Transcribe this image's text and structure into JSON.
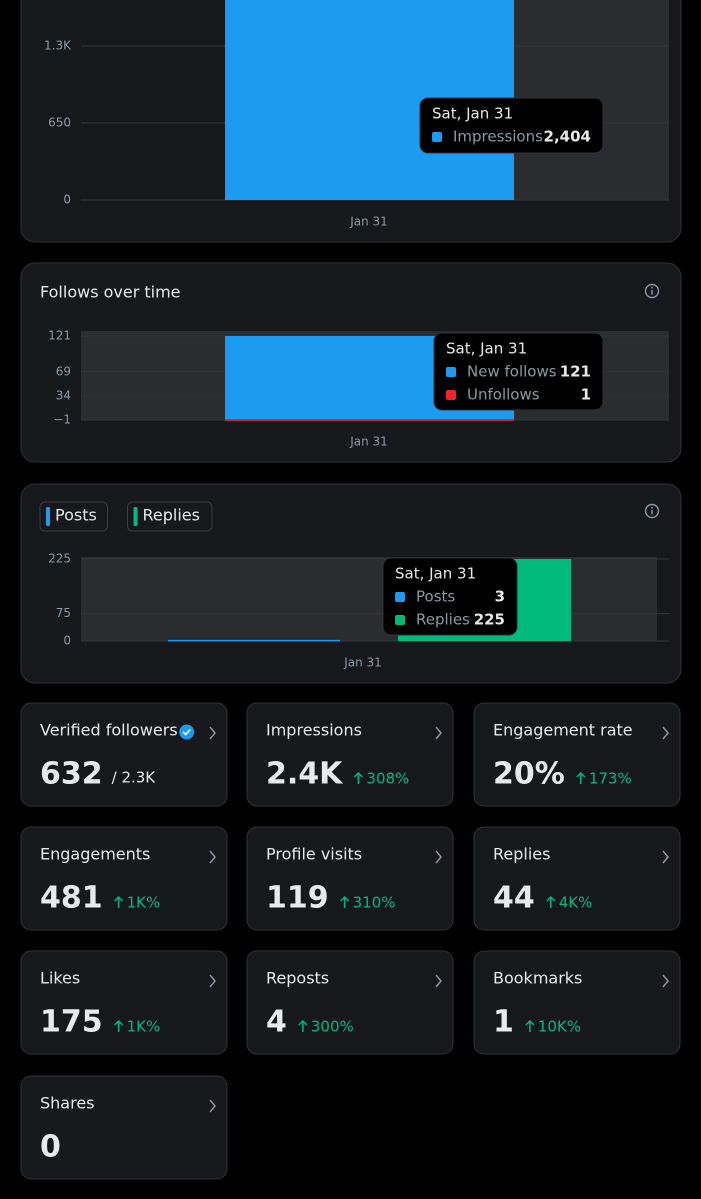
{
  "charts": [
    {
      "type": "bar",
      "x_labels": [
        "Jan 31"
      ],
      "tooltip_title": "Sat, Jan 31",
      "ylim": [
        0,
        1688
      ],
      "yticks": [
        {
          "value": 1300,
          "label": "1.3K"
        },
        650,
        0
      ],
      "series": [
        {
          "name": "Impressions",
          "color": "#1d9bf0",
          "values": [
            2404
          ],
          "value_labels": [
            "2,404"
          ]
        }
      ]
    },
    {
      "type": "bar",
      "title": "Follows over time",
      "x_labels": [
        "Jan 31"
      ],
      "tooltip_title": "Sat, Jan 31",
      "ylim": [
        -1,
        121
      ],
      "yticks": [
        121,
        69,
        34,
        {
          "value": -1,
          "label": "−1"
        }
      ],
      "series": [
        {
          "name": "New follows",
          "color": "#1d9bf0",
          "values": [
            121
          ]
        },
        {
          "name": "Unfollows",
          "color": "#f4212e",
          "values": [
            1
          ]
        }
      ]
    },
    {
      "type": "bar",
      "legend": true,
      "x_labels": [
        "Jan 31"
      ],
      "tooltip_title": "Sat, Jan 31",
      "ylim": [
        0,
        225
      ],
      "yticks": [
        225,
        75,
        0
      ],
      "series": [
        {
          "name": "Posts",
          "color": "#1d9bf0",
          "values": [
            3
          ]
        },
        {
          "name": "Replies",
          "color": "#00ba7c",
          "values": [
            225
          ]
        }
      ]
    }
  ],
  "cards": [
    {
      "label": "Verified followers",
      "value": "632",
      "total": "/ 2.3K"
    },
    {
      "label": "Impressions",
      "value": "2.4K",
      "change": "308%"
    },
    {
      "label": "Engagement rate",
      "value": "20%",
      "change": "173%"
    },
    {
      "label": "Engagements",
      "value": "481",
      "change": "1K%"
    },
    {
      "label": "Profile visits",
      "value": "119",
      "change": "310%"
    },
    {
      "label": "Replies",
      "value": "44",
      "change": "4K%"
    },
    {
      "label": "Likes",
      "value": "175",
      "change": "1K%"
    },
    {
      "label": "Reposts",
      "value": "4",
      "change": "300%"
    },
    {
      "label": "Bookmarks",
      "value": "1",
      "change": "10K%"
    },
    {
      "label": "Shares",
      "value": "0"
    }
  ]
}
